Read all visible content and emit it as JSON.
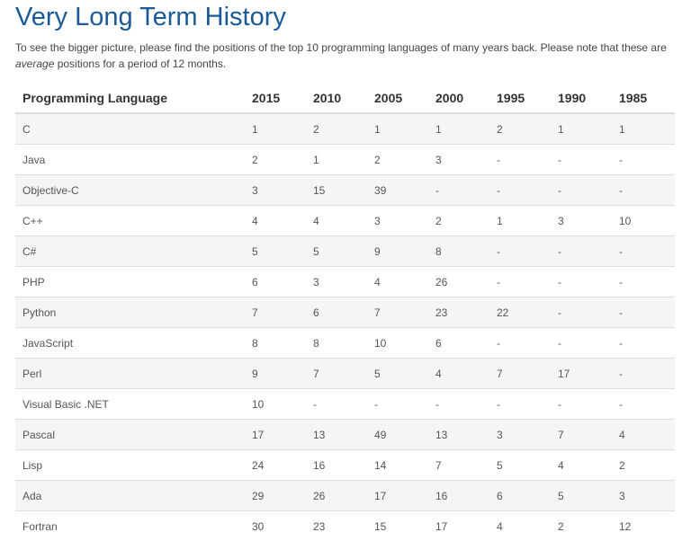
{
  "page": {
    "title": "Very Long Term History",
    "intro_before": "To see the bigger picture, please find the positions of the top 10 programming languages of many years back. Please note that these are ",
    "intro_emphasis": "average",
    "intro_after": " positions for a period of 12 months."
  },
  "table": {
    "headers": [
      "Programming Language",
      "2015",
      "2010",
      "2005",
      "2000",
      "1995",
      "1990",
      "1985"
    ],
    "rows": [
      [
        "C",
        "1",
        "2",
        "1",
        "1",
        "2",
        "1",
        "1"
      ],
      [
        "Java",
        "2",
        "1",
        "2",
        "3",
        "-",
        "-",
        "-"
      ],
      [
        "Objective-C",
        "3",
        "15",
        "39",
        "-",
        "-",
        "-",
        "-"
      ],
      [
        "C++",
        "4",
        "4",
        "3",
        "2",
        "1",
        "3",
        "10"
      ],
      [
        "C#",
        "5",
        "5",
        "9",
        "8",
        "-",
        "-",
        "-"
      ],
      [
        "PHP",
        "6",
        "3",
        "4",
        "26",
        "-",
        "-",
        "-"
      ],
      [
        "Python",
        "7",
        "6",
        "7",
        "23",
        "22",
        "-",
        "-"
      ],
      [
        "JavaScript",
        "8",
        "8",
        "10",
        "6",
        "-",
        "-",
        "-"
      ],
      [
        "Perl",
        "9",
        "7",
        "5",
        "4",
        "7",
        "17",
        "-"
      ],
      [
        "Visual Basic .NET",
        "10",
        "-",
        "-",
        "-",
        "-",
        "-",
        "-"
      ],
      [
        "Pascal",
        "17",
        "13",
        "49",
        "13",
        "3",
        "7",
        "4"
      ],
      [
        "Lisp",
        "24",
        "16",
        "14",
        "7",
        "5",
        "4",
        "2"
      ],
      [
        "Ada",
        "29",
        "26",
        "17",
        "16",
        "6",
        "5",
        "3"
      ],
      [
        "Fortran",
        "30",
        "23",
        "15",
        "17",
        "4",
        "2",
        "12"
      ]
    ]
  },
  "colors": {
    "title": "#1a5a96",
    "row_stripe": "#f5f5f5",
    "border": "#dddddd"
  }
}
